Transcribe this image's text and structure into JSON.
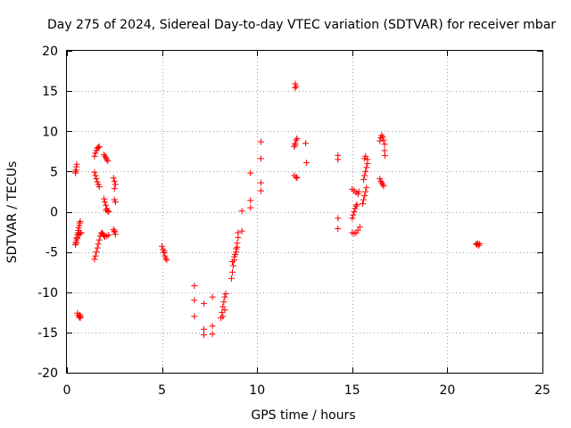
{
  "chart_data": {
    "type": "scatter",
    "title": "Day 275 of 2024, Sidereal Day-to-day VTEC variation (SDTVAR) for receiver mbar",
    "xlabel": "GPS time / hours",
    "ylabel": "SDTVAR / TECUs",
    "xlim": [
      0,
      25
    ],
    "ylim": [
      -20,
      20
    ],
    "xticks": [
      0,
      5,
      10,
      15,
      20,
      25
    ],
    "yticks": [
      -20,
      -15,
      -10,
      -5,
      0,
      5,
      10,
      15,
      20
    ],
    "xtick_labels": [
      "0",
      "5",
      "10",
      "15",
      "20",
      "25"
    ],
    "ytick_labels": [
      "-20",
      "-15",
      "-10",
      "-5",
      "0",
      "5",
      "10",
      "15",
      "20"
    ],
    "grid": true,
    "marker": "plus",
    "color": "#ff0000",
    "series": [
      {
        "name": "SDTVAR",
        "points": [
          [
            0.45,
            4.8
          ],
          [
            0.48,
            5.2
          ],
          [
            0.5,
            5.6
          ],
          [
            0.52,
            5.9
          ],
          [
            0.45,
            5.0
          ],
          [
            0.45,
            -4.1
          ],
          [
            0.47,
            -3.8
          ],
          [
            0.5,
            -3.5
          ],
          [
            0.52,
            -3.2
          ],
          [
            0.55,
            -2.9
          ],
          [
            0.57,
            -2.6
          ],
          [
            0.6,
            -2.3
          ],
          [
            0.62,
            -2.0
          ],
          [
            0.65,
            -1.7
          ],
          [
            0.67,
            -1.4
          ],
          [
            0.7,
            -1.2
          ],
          [
            0.48,
            -3.9
          ],
          [
            0.55,
            -3.3
          ],
          [
            0.63,
            -2.8
          ],
          [
            0.7,
            -2.7
          ],
          [
            0.75,
            -2.6
          ],
          [
            0.55,
            -12.6
          ],
          [
            0.6,
            -12.9
          ],
          [
            0.65,
            -13.1
          ],
          [
            0.7,
            -13.2
          ],
          [
            0.72,
            -13.0
          ],
          [
            0.68,
            -12.8
          ],
          [
            1.45,
            -5.9
          ],
          [
            1.5,
            -5.5
          ],
          [
            1.55,
            -5.0
          ],
          [
            1.6,
            -4.5
          ],
          [
            1.65,
            -4.0
          ],
          [
            1.7,
            -3.5
          ],
          [
            1.75,
            -3.0
          ],
          [
            1.8,
            -2.7
          ],
          [
            1.45,
            4.9
          ],
          [
            1.5,
            4.5
          ],
          [
            1.55,
            4.1
          ],
          [
            1.6,
            3.7
          ],
          [
            1.65,
            3.4
          ],
          [
            1.7,
            3.1
          ],
          [
            1.45,
            6.9
          ],
          [
            1.5,
            7.3
          ],
          [
            1.55,
            7.6
          ],
          [
            1.6,
            7.9
          ],
          [
            1.65,
            8.0
          ],
          [
            1.7,
            8.1
          ],
          [
            1.85,
            -2.6
          ],
          [
            1.9,
            -2.8
          ],
          [
            1.95,
            -3.0
          ],
          [
            2.0,
            -3.1
          ],
          [
            2.1,
            -3.0
          ],
          [
            2.2,
            -2.9
          ],
          [
            1.95,
            7.1
          ],
          [
            2.0,
            6.9
          ],
          [
            2.05,
            6.7
          ],
          [
            2.1,
            6.5
          ],
          [
            2.15,
            6.3
          ],
          [
            1.95,
            1.6
          ],
          [
            2.0,
            1.2
          ],
          [
            2.05,
            0.8
          ],
          [
            2.1,
            0.4
          ],
          [
            2.15,
            0.1
          ],
          [
            2.2,
            0.0
          ],
          [
            2.05,
            0.2
          ],
          [
            2.45,
            4.2
          ],
          [
            2.5,
            3.8
          ],
          [
            2.55,
            3.4
          ],
          [
            2.5,
            2.9
          ],
          [
            2.5,
            1.5
          ],
          [
            2.55,
            1.2
          ],
          [
            2.45,
            -2.2
          ],
          [
            2.5,
            -2.5
          ],
          [
            2.55,
            -2.8
          ],
          [
            2.5,
            -2.4
          ],
          [
            5.0,
            -4.3
          ],
          [
            5.05,
            -4.7
          ],
          [
            5.1,
            -5.1
          ],
          [
            5.15,
            -5.5
          ],
          [
            5.2,
            -5.8
          ],
          [
            5.25,
            -6.0
          ],
          [
            5.12,
            -4.9
          ],
          [
            6.7,
            -9.2
          ],
          [
            6.7,
            -11.0
          ],
          [
            6.7,
            -13.0
          ],
          [
            7.2,
            -11.4
          ],
          [
            7.2,
            -14.6
          ],
          [
            7.2,
            -15.3
          ],
          [
            7.65,
            -10.6
          ],
          [
            7.65,
            -14.2
          ],
          [
            7.65,
            -15.2
          ],
          [
            8.1,
            -13.2
          ],
          [
            8.15,
            -12.5
          ],
          [
            8.2,
            -11.8
          ],
          [
            8.25,
            -11.2
          ],
          [
            8.3,
            -10.6
          ],
          [
            8.35,
            -10.2
          ],
          [
            8.2,
            -13.0
          ],
          [
            8.3,
            -12.2
          ],
          [
            8.65,
            -8.3
          ],
          [
            8.7,
            -7.5
          ],
          [
            8.75,
            -6.7
          ],
          [
            8.8,
            -6.0
          ],
          [
            8.85,
            -5.3
          ],
          [
            8.9,
            -4.6
          ],
          [
            8.95,
            -3.9
          ],
          [
            9.0,
            -3.2
          ],
          [
            9.0,
            -2.6
          ],
          [
            8.7,
            -6.2
          ],
          [
            8.8,
            -5.6
          ],
          [
            8.9,
            -5.0
          ],
          [
            8.95,
            -4.4
          ],
          [
            9.2,
            -2.4
          ],
          [
            9.2,
            0.1
          ],
          [
            9.65,
            0.5
          ],
          [
            9.65,
            1.4
          ],
          [
            9.65,
            4.8
          ],
          [
            10.2,
            2.6
          ],
          [
            10.2,
            3.6
          ],
          [
            10.2,
            6.6
          ],
          [
            10.2,
            8.7
          ],
          [
            12.0,
            15.4
          ],
          [
            12.0,
            15.9
          ],
          [
            12.05,
            15.6
          ],
          [
            11.95,
            8.1
          ],
          [
            12.0,
            8.5
          ],
          [
            12.05,
            8.9
          ],
          [
            12.1,
            9.1
          ],
          [
            12.0,
            8.3
          ],
          [
            11.95,
            4.5
          ],
          [
            12.05,
            4.3
          ],
          [
            12.1,
            4.2
          ],
          [
            12.55,
            8.5
          ],
          [
            12.6,
            6.1
          ],
          [
            14.25,
            7.0
          ],
          [
            14.25,
            6.5
          ],
          [
            14.25,
            -0.8
          ],
          [
            14.25,
            -2.1
          ],
          [
            15.0,
            2.8
          ],
          [
            15.1,
            2.6
          ],
          [
            15.2,
            2.4
          ],
          [
            15.3,
            2.2
          ],
          [
            15.35,
            2.5
          ],
          [
            15.0,
            -2.6
          ],
          [
            15.1,
            -2.7
          ],
          [
            15.2,
            -2.6
          ],
          [
            15.3,
            -2.3
          ],
          [
            15.4,
            -1.9
          ],
          [
            15.0,
            -0.8
          ],
          [
            15.05,
            -0.4
          ],
          [
            15.1,
            0.0
          ],
          [
            15.15,
            0.4
          ],
          [
            15.2,
            0.7
          ],
          [
            15.25,
            0.9
          ],
          [
            15.55,
            1.0
          ],
          [
            15.6,
            1.5
          ],
          [
            15.65,
            2.0
          ],
          [
            15.7,
            2.5
          ],
          [
            15.75,
            3.0
          ],
          [
            15.6,
            4.0
          ],
          [
            15.65,
            4.5
          ],
          [
            15.7,
            5.0
          ],
          [
            15.75,
            5.5
          ],
          [
            15.8,
            6.0
          ],
          [
            15.8,
            6.5
          ],
          [
            15.7,
            6.9
          ],
          [
            15.65,
            6.6
          ],
          [
            16.45,
            8.8
          ],
          [
            16.5,
            9.2
          ],
          [
            16.55,
            9.5
          ],
          [
            16.6,
            9.3
          ],
          [
            16.65,
            8.9
          ],
          [
            16.7,
            8.4
          ],
          [
            16.7,
            7.6
          ],
          [
            16.72,
            7.0
          ],
          [
            16.45,
            4.1
          ],
          [
            16.5,
            3.8
          ],
          [
            16.55,
            3.6
          ],
          [
            16.6,
            3.4
          ],
          [
            16.65,
            3.2
          ],
          [
            21.5,
            -4.0
          ],
          [
            21.55,
            -4.1
          ],
          [
            21.6,
            -3.9
          ],
          [
            21.65,
            -4.2
          ],
          [
            21.7,
            -4.0
          ]
        ]
      }
    ]
  }
}
